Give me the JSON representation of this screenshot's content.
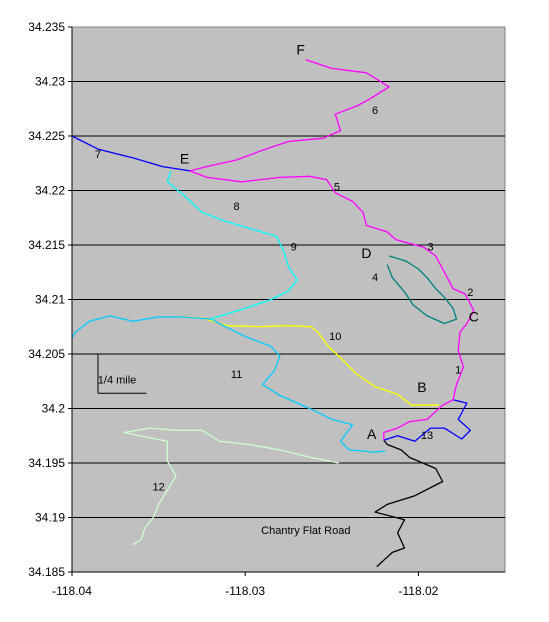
{
  "chart_data": {
    "type": "line",
    "title": "",
    "xlabel": "",
    "ylabel": "",
    "xlim": [
      -118.04,
      -118.015
    ],
    "ylim": [
      34.185,
      34.235
    ],
    "xticks": [
      -118.04,
      -118.03,
      -118.02
    ],
    "x_tick_labels": [
      "-118.04",
      "-118.03",
      "-118.02"
    ],
    "yticks": [
      34.185,
      34.19,
      34.195,
      34.2,
      34.205,
      34.21,
      34.215,
      34.22,
      34.225,
      34.23,
      34.235
    ],
    "y_tick_labels": [
      "34.185",
      "34.19",
      "34.195",
      "34.2",
      "34.205",
      "34.21",
      "34.215",
      "34.22",
      "34.225",
      "34.23",
      "34.235"
    ],
    "grid": "horizontal",
    "plot_background": "#c0c0c0",
    "series": [
      {
        "color": "#000000",
        "points": [
          [
            -118.0224,
            34.1855
          ],
          [
            -118.0215,
            34.1868
          ],
          [
            -118.0208,
            34.1872
          ],
          [
            -118.0212,
            34.1886
          ],
          [
            -118.0208,
            34.1898
          ],
          [
            -118.0225,
            34.1905
          ],
          [
            -118.0218,
            34.1912
          ],
          [
            -118.0202,
            34.192
          ],
          [
            -118.0186,
            34.1933
          ],
          [
            -118.019,
            34.1945
          ],
          [
            -118.0205,
            34.1955
          ],
          [
            -118.021,
            34.1962
          ],
          [
            -118.0218,
            34.1967
          ],
          [
            -118.022,
            34.1971
          ]
        ]
      },
      {
        "color": "#0000ff",
        "points": [
          [
            -118.022,
            34.1971
          ],
          [
            -118.0212,
            34.1975
          ],
          [
            -118.0202,
            34.197
          ],
          [
            -118.0193,
            34.1982
          ],
          [
            -118.0185,
            34.1982
          ],
          [
            -118.0175,
            34.1972
          ],
          [
            -118.017,
            34.198
          ],
          [
            -118.0177,
            34.199
          ],
          [
            -118.0172,
            34.2005
          ],
          [
            -118.018,
            34.2008
          ]
        ]
      },
      {
        "color": "#ff00ff",
        "points": [
          [
            -118.022,
            34.1971
          ],
          [
            -118.022,
            34.1978
          ],
          [
            -118.0212,
            34.1982
          ],
          [
            -118.0205,
            34.1988
          ],
          [
            -118.0195,
            34.199
          ],
          [
            -118.0186,
            34.2003
          ],
          [
            -118.018,
            34.2008
          ],
          [
            -118.0178,
            34.2022
          ],
          [
            -118.0174,
            34.2038
          ],
          [
            -118.0177,
            34.2053
          ],
          [
            -118.0176,
            34.207
          ],
          [
            -118.0172,
            34.2078
          ],
          [
            -118.0168,
            34.209
          ],
          [
            -118.0173,
            34.2105
          ],
          [
            -118.018,
            34.211
          ],
          [
            -118.0185,
            34.2125
          ],
          [
            -118.019,
            34.214
          ],
          [
            -118.0197,
            34.2148
          ],
          [
            -118.0213,
            34.2155
          ],
          [
            -118.0218,
            34.2162
          ],
          [
            -118.023,
            34.2168
          ],
          [
            -118.0232,
            34.218
          ],
          [
            -118.0238,
            34.219
          ],
          [
            -118.0248,
            34.2198
          ],
          [
            -118.0253,
            34.221
          ],
          [
            -118.0263,
            34.2213
          ],
          [
            -118.028,
            34.2212
          ],
          [
            -118.0302,
            34.2208
          ],
          [
            -118.0322,
            34.2212
          ],
          [
            -118.0332,
            34.2218
          ],
          [
            -118.0322,
            34.2222
          ],
          [
            -118.0305,
            34.2228
          ],
          [
            -118.029,
            34.2237
          ],
          [
            -118.0275,
            34.2245
          ],
          [
            -118.0255,
            34.2248
          ],
          [
            -118.0245,
            34.2255
          ],
          [
            -118.0248,
            34.227
          ],
          [
            -118.0235,
            34.2278
          ],
          [
            -118.0228,
            34.2284
          ],
          [
            -118.0217,
            34.2295
          ],
          [
            -118.023,
            34.2308
          ],
          [
            -118.025,
            34.2312
          ],
          [
            -118.0265,
            34.232
          ]
        ]
      },
      {
        "color": "#ffff00",
        "points": [
          [
            -118.0188,
            34.2003
          ],
          [
            -118.0204,
            34.2003
          ],
          [
            -118.0212,
            34.2013
          ],
          [
            -118.0225,
            34.202
          ],
          [
            -118.0236,
            34.2032
          ],
          [
            -118.0244,
            34.2045
          ],
          [
            -118.0252,
            34.2057
          ],
          [
            -118.0258,
            34.207
          ],
          [
            -118.0262,
            34.2075
          ],
          [
            -118.0275,
            34.2076
          ],
          [
            -118.0292,
            34.2075
          ],
          [
            -118.031,
            34.2076
          ],
          [
            -118.0325,
            34.2083
          ],
          [
            -118.0337,
            34.2084
          ]
        ]
      },
      {
        "color": "#00ccff",
        "points": [
          [
            -118.0337,
            34.2084
          ],
          [
            -118.032,
            34.2082
          ],
          [
            -118.03,
            34.2066
          ],
          [
            -118.0285,
            34.2057
          ],
          [
            -118.028,
            34.2048
          ],
          [
            -118.0283,
            34.2035
          ],
          [
            -118.029,
            34.2022
          ],
          [
            -118.028,
            34.2012
          ],
          [
            -118.027,
            34.2005
          ],
          [
            -118.026,
            34.1998
          ],
          [
            -118.025,
            34.199
          ],
          [
            -118.0238,
            34.1985
          ],
          [
            -118.0245,
            34.197
          ],
          [
            -118.024,
            34.1962
          ],
          [
            -118.0225,
            34.196
          ],
          [
            -118.0219,
            34.1961
          ]
        ]
      },
      {
        "color": "#00ccff",
        "points": [
          [
            -118.0337,
            34.2084
          ],
          [
            -118.035,
            34.2084
          ],
          [
            -118.0365,
            34.208
          ],
          [
            -118.0378,
            34.2085
          ],
          [
            -118.039,
            34.208
          ],
          [
            -118.0398,
            34.207
          ],
          [
            -118.04,
            34.2065
          ]
        ]
      },
      {
        "color": "#00ffff",
        "points": [
          [
            -118.032,
            34.2082
          ],
          [
            -118.03,
            34.2092
          ],
          [
            -118.0285,
            34.21
          ],
          [
            -118.0275,
            34.2108
          ],
          [
            -118.027,
            34.2118
          ],
          [
            -118.0275,
            34.213
          ],
          [
            -118.0278,
            34.2145
          ],
          [
            -118.0282,
            34.2158
          ],
          [
            -118.0297,
            34.2165
          ],
          [
            -118.0312,
            34.2172
          ],
          [
            -118.0325,
            34.218
          ],
          [
            -118.0335,
            34.2195
          ],
          [
            -118.0345,
            34.2208
          ],
          [
            -118.0343,
            34.2218
          ]
        ]
      },
      {
        "color": "#0000ff",
        "points": [
          [
            -118.0332,
            34.2218
          ],
          [
            -118.0348,
            34.2222
          ],
          [
            -118.0365,
            34.223
          ],
          [
            -118.0385,
            34.2238
          ],
          [
            -118.04,
            34.225
          ]
        ]
      },
      {
        "color": "#008080",
        "points": [
          [
            -118.0217,
            34.214
          ],
          [
            -118.0207,
            34.2135
          ],
          [
            -118.02,
            34.2128
          ],
          [
            -118.0195,
            34.212
          ],
          [
            -118.019,
            34.211
          ],
          [
            -118.0185,
            34.2102
          ],
          [
            -118.018,
            34.2092
          ],
          [
            -118.0178,
            34.2082
          ],
          [
            -118.0185,
            34.2078
          ],
          [
            -118.0195,
            34.2085
          ],
          [
            -118.0203,
            34.2095
          ],
          [
            -118.0208,
            34.2107
          ],
          [
            -118.0215,
            34.212
          ],
          [
            -118.0218,
            34.2132
          ]
        ]
      },
      {
        "color": "#ccffcc",
        "points": [
          [
            -118.0246,
            34.195
          ],
          [
            -118.0262,
            34.1955
          ],
          [
            -118.028,
            34.1962
          ],
          [
            -118.0298,
            34.1967
          ],
          [
            -118.0315,
            34.197
          ],
          [
            -118.0325,
            34.198
          ],
          [
            -118.034,
            34.198
          ],
          [
            -118.0355,
            34.1982
          ],
          [
            -118.037,
            34.1978
          ],
          [
            -118.0345,
            34.197
          ],
          [
            -118.0345,
            34.1952
          ],
          [
            -118.034,
            34.1938
          ],
          [
            -118.0345,
            34.1925
          ],
          [
            -118.035,
            34.1912
          ],
          [
            -118.0353,
            34.19
          ],
          [
            -118.0358,
            34.189
          ],
          [
            -118.036,
            34.188
          ],
          [
            -118.0365,
            34.1875
          ]
        ]
      }
    ],
    "point_labels": [
      {
        "text": "A",
        "x": -118.0227,
        "y": 34.1972
      },
      {
        "text": "B",
        "x": -118.0198,
        "y": 34.2015
      },
      {
        "text": "C",
        "x": -118.0168,
        "y": 34.208
      },
      {
        "text": "D",
        "x": -118.023,
        "y": 34.2138
      },
      {
        "text": "E",
        "x": -118.0335,
        "y": 34.2225
      },
      {
        "text": "F",
        "x": -118.0268,
        "y": 34.2325
      }
    ],
    "segment_labels": [
      {
        "text": "1",
        "x": -118.0177,
        "y": 34.2032
      },
      {
        "text": "2",
        "x": -118.017,
        "y": 34.2103
      },
      {
        "text": "3",
        "x": -118.0193,
        "y": 34.2145
      },
      {
        "text": "4",
        "x": -118.0225,
        "y": 34.2117
      },
      {
        "text": "5",
        "x": -118.0247,
        "y": 34.22
      },
      {
        "text": "6",
        "x": -118.0225,
        "y": 34.227
      },
      {
        "text": "7",
        "x": -118.0385,
        "y": 34.223
      },
      {
        "text": "8",
        "x": -118.0305,
        "y": 34.2182
      },
      {
        "text": "9",
        "x": -118.0272,
        "y": 34.2145
      },
      {
        "text": "10",
        "x": -118.0248,
        "y": 34.2063
      },
      {
        "text": "11",
        "x": -118.0305,
        "y": 34.2028
      },
      {
        "text": "12",
        "x": -118.035,
        "y": 34.1925
      },
      {
        "text": "13",
        "x": -118.0195,
        "y": 34.1972
      }
    ],
    "annotations": [
      {
        "text": "Chantry Flat Road",
        "x": -118.0265,
        "y": 34.1885
      },
      {
        "text": "1/4 mile",
        "x": -118.0374,
        "y": 34.2023
      }
    ],
    "scale_bar": {
      "label": "1/4 mile",
      "x_start": -118.0385,
      "x_end": -118.0357,
      "y": 34.2014,
      "y_top": 34.205
    }
  }
}
